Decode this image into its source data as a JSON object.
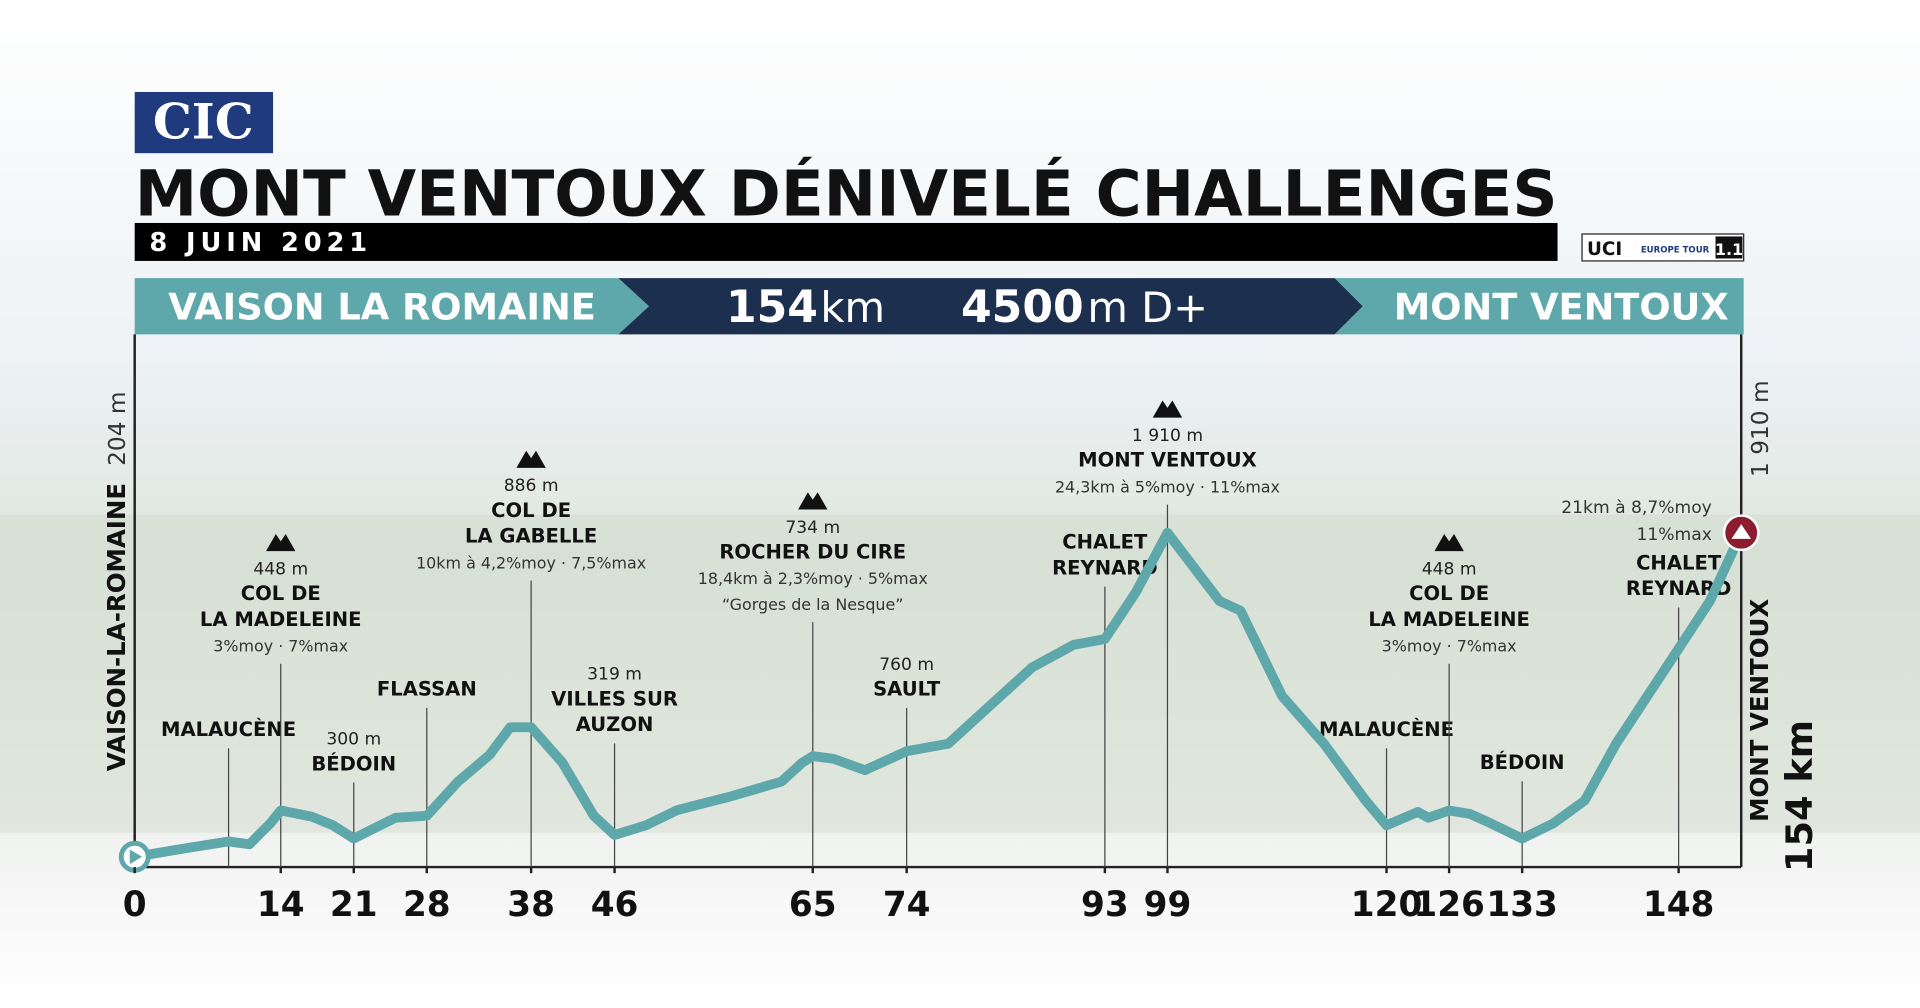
{
  "chart_data": {
    "type": "line",
    "logo": "CIC",
    "title": "MONT VENTOUX  DÉNIVELÉ CHALLENGES",
    "date": "8 JUIN 2021",
    "uci": [
      "UCI",
      "EUROPE TOUR",
      "1.1"
    ],
    "start": "VAISON LA ROMAINE",
    "distance": "154",
    "distance_unit": "km",
    "climbing": "4500",
    "climbing_unit": "m D+",
    "finish": "MONT VENTOUX",
    "start_side_label": "VAISON-LA-ROMAINE",
    "start_elevation_label": "204 m",
    "finish_elevation_label": "1 910 m",
    "finish_side_label": "MONT VENTOUX",
    "finish_distance_label": "154 km",
    "finish_climb": [
      "21km à 8,7%moy",
      "11%max"
    ],
    "color": "#5ea8ac",
    "x": [
      0,
      5,
      9,
      11,
      13,
      14,
      17,
      19,
      21,
      25,
      28,
      31,
      34,
      36,
      38,
      41,
      44,
      46,
      49,
      52,
      57,
      62,
      64,
      65,
      67,
      70,
      74,
      78,
      82,
      86,
      90,
      93,
      96,
      99,
      104,
      106,
      110,
      114,
      118,
      120,
      123,
      124,
      126,
      128,
      130,
      133,
      136,
      139,
      142,
      145,
      148,
      151,
      154
    ],
    "values": [
      204,
      250,
      285,
      270,
      380,
      448,
      415,
      370,
      300,
      410,
      420,
      600,
      740,
      886,
      886,
      700,
      420,
      319,
      370,
      450,
      520,
      600,
      700,
      734,
      720,
      660,
      760,
      800,
      1000,
      1200,
      1320,
      1350,
      1600,
      1910,
      1550,
      1500,
      1050,
      800,
      500,
      370,
      440,
      410,
      448,
      430,
      380,
      300,
      380,
      500,
      800,
      1050,
      1300,
      1550,
      1910
    ],
    "xlim": [
      0,
      154
    ],
    "ylim": [
      150,
      2000
    ],
    "xticks": [
      0,
      14,
      21,
      28,
      38,
      46,
      65,
      74,
      93,
      99,
      120,
      126,
      133,
      148
    ],
    "annotations": [
      {
        "x": 9,
        "name": [
          "MALAUCÈNE"
        ]
      },
      {
        "x": 14,
        "summit": true,
        "elevation": "448 m",
        "name": [
          "COL DE",
          "LA MADELEINE"
        ],
        "detail": "3%moy · 7%max"
      },
      {
        "x": 21,
        "elevation": "300 m",
        "name": [
          "BÉDOIN"
        ]
      },
      {
        "x": 28,
        "name": [
          "FLASSAN"
        ]
      },
      {
        "x": 38,
        "summit": true,
        "elevation": "886 m",
        "name": [
          "COL DE",
          "LA GABELLE"
        ],
        "detail": "10km à 4,2%moy · 7,5%max"
      },
      {
        "x": 46,
        "elevation": "319 m",
        "name": [
          "VILLES SUR",
          "AUZON"
        ]
      },
      {
        "x": 65,
        "summit": true,
        "elevation": "734 m",
        "name": [
          "ROCHER DU CIRE"
        ],
        "detail": "18,4km à 2,3%moy · 5%max",
        "note": "“Gorges de la Nesque”"
      },
      {
        "x": 74,
        "elevation": "760 m",
        "name": [
          "SAULT"
        ]
      },
      {
        "x": 93,
        "name": [
          "CHALET",
          "REYNARD"
        ]
      },
      {
        "x": 99,
        "summit": true,
        "elevation": "1 910 m",
        "name": [
          "MONT VENTOUX"
        ],
        "detail": "24,3km à 5%moy · 11%max"
      },
      {
        "x": 120,
        "name": [
          "MALAUCÈNE"
        ]
      },
      {
        "x": 126,
        "summit": true,
        "elevation": "448 m",
        "name": [
          "COL DE",
          "LA MADELEINE"
        ],
        "detail": "3%moy · 7%max"
      },
      {
        "x": 133,
        "name": [
          "BÉDOIN"
        ]
      },
      {
        "x": 148,
        "name": [
          "CHALET",
          "REYNARD"
        ]
      }
    ]
  }
}
